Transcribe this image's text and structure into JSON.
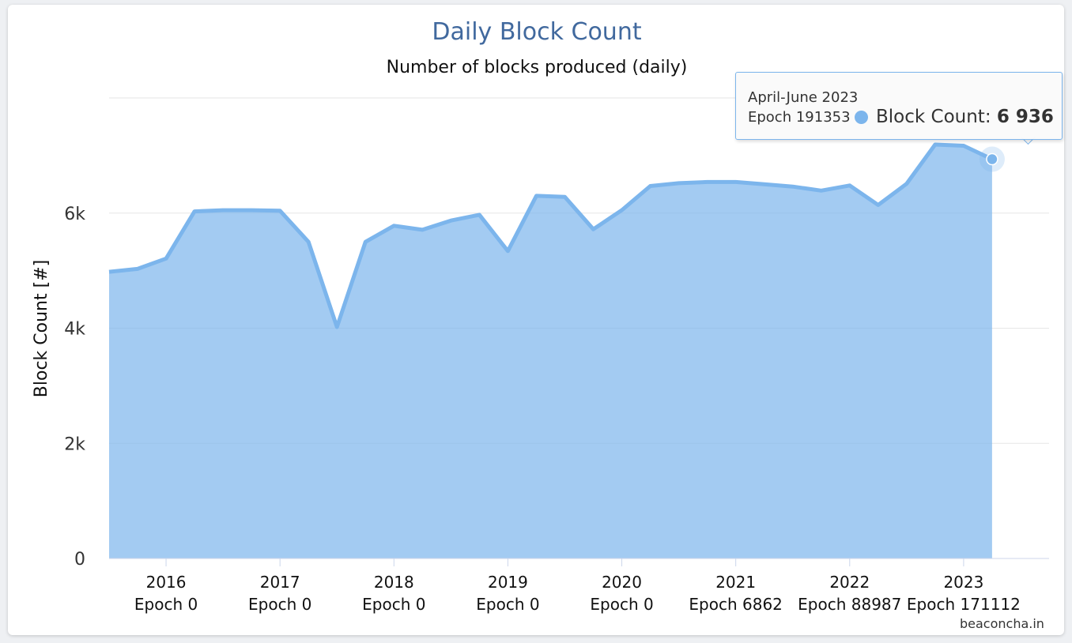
{
  "chart_data": {
    "type": "area",
    "title": "Daily Block Count",
    "subtitle": "Number of blocks produced (daily)",
    "ylabel": "Block Count [#]",
    "xlabel": "",
    "ylim": [
      0,
      8000
    ],
    "y_ticks": [
      {
        "value": 0,
        "label": "0"
      },
      {
        "value": 2000,
        "label": "2k"
      },
      {
        "value": 4000,
        "label": "4k"
      },
      {
        "value": 6000,
        "label": "6k"
      }
    ],
    "x_range": [
      2015.5,
      2023.75
    ],
    "x_ticks": [
      {
        "value": 2016,
        "year": "2016",
        "epoch": "Epoch 0"
      },
      {
        "value": 2017,
        "year": "2017",
        "epoch": "Epoch 0"
      },
      {
        "value": 2018,
        "year": "2018",
        "epoch": "Epoch 0"
      },
      {
        "value": 2019,
        "year": "2019",
        "epoch": "Epoch 0"
      },
      {
        "value": 2020,
        "year": "2020",
        "epoch": "Epoch 0"
      },
      {
        "value": 2021,
        "year": "2021",
        "epoch": "Epoch 6862"
      },
      {
        "value": 2022,
        "year": "2022",
        "epoch": "Epoch 88987"
      },
      {
        "value": 2023,
        "year": "2023",
        "epoch": "Epoch 171112"
      }
    ],
    "grid": true,
    "color": "#7cb5ec",
    "series": [
      {
        "name": "Block Count",
        "x": [
          2015.5,
          2015.75,
          2016.0,
          2016.25,
          2016.5,
          2016.75,
          2017.0,
          2017.25,
          2017.5,
          2017.75,
          2018.0,
          2018.25,
          2018.5,
          2018.75,
          2019.0,
          2019.25,
          2019.5,
          2019.75,
          2020.0,
          2020.25,
          2020.5,
          2020.75,
          2021.0,
          2021.25,
          2021.5,
          2021.75,
          2022.0,
          2022.25,
          2022.5,
          2022.75,
          2023.0,
          2023.25
        ],
        "y": [
          4980,
          5030,
          5210,
          6030,
          6050,
          6050,
          6040,
          5500,
          4020,
          5500,
          5780,
          5710,
          5870,
          5970,
          5340,
          6300,
          6280,
          5720,
          6050,
          6470,
          6520,
          6540,
          6540,
          6500,
          6460,
          6390,
          6480,
          6140,
          6510,
          7190,
          7170,
          6936
        ]
      }
    ],
    "tooltip": {
      "period": "April-June 2023",
      "epoch": "Epoch 191353",
      "series_label": "Block Count: ",
      "value": "6 936"
    },
    "credit": "beaconcha.in"
  }
}
